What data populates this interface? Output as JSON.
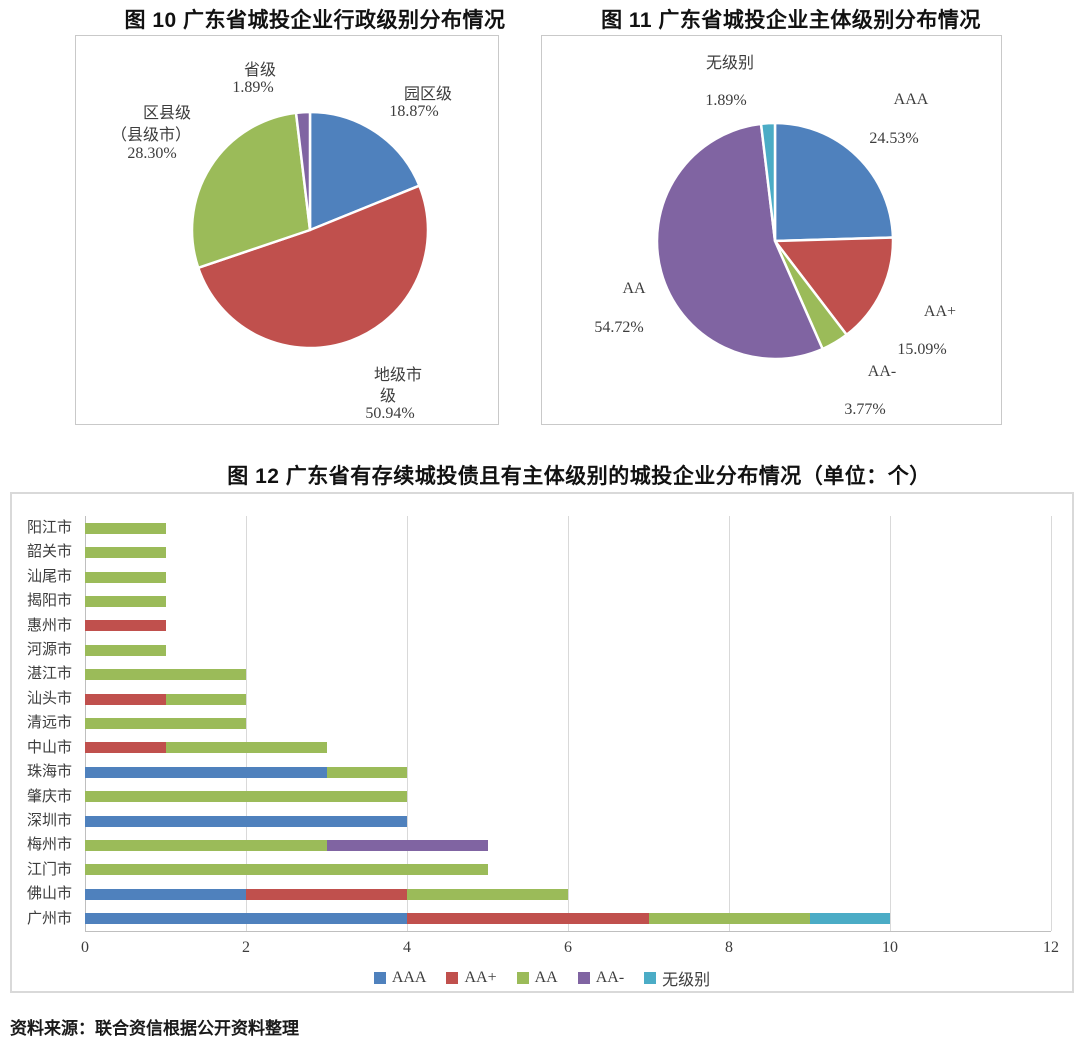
{
  "source_note": "资料来源：联合资信根据公开资料整理",
  "palette": {
    "blue": "#4F81BD",
    "red": "#C0504D",
    "green": "#9BBB59",
    "purple": "#8064A2",
    "teal": "#4BACC6"
  },
  "chart_data": [
    {
      "id": "fig10",
      "type": "pie",
      "title": "图 10  广东省城投企业行政级别分布情况",
      "start_angle_deg": 0,
      "direction": "clockwise",
      "slices": [
        {
          "name": "园区级",
          "name_lines": [
            "园区级"
          ],
          "pct": 18.87,
          "pct_label": "18.87%",
          "color": "#4F81BD"
        },
        {
          "name": "地级市级",
          "name_lines": [
            "地级市",
            "级"
          ],
          "pct": 50.94,
          "pct_label": "50.94%",
          "color": "#C0504D"
        },
        {
          "name": "区县级（县级市）",
          "name_lines": [
            "区县级",
            "（县级市）"
          ],
          "pct": 28.3,
          "pct_label": "28.30%",
          "color": "#9BBB59"
        },
        {
          "name": "省级",
          "name_lines": [
            "省级"
          ],
          "pct": 1.89,
          "pct_label": "1.89%",
          "color": "#8064A2"
        }
      ]
    },
    {
      "id": "fig11",
      "type": "pie",
      "title": "图 11  广东省城投企业主体级别分布情况",
      "start_angle_deg": 0,
      "direction": "clockwise",
      "slices": [
        {
          "name": "AAA",
          "pct": 24.53,
          "pct_label": "24.53%",
          "color": "#4F81BD"
        },
        {
          "name": "AA+",
          "pct": 15.09,
          "pct_label": "15.09%",
          "color": "#C0504D"
        },
        {
          "name": "AA-",
          "pct": 3.77,
          "pct_label": "3.77%",
          "color": "#9BBB59"
        },
        {
          "name": "AA",
          "pct": 54.72,
          "pct_label": "54.72%",
          "color": "#8064A2"
        },
        {
          "name": "无级别",
          "pct": 1.89,
          "pct_label": "1.89%",
          "color": "#4BACC6"
        }
      ]
    },
    {
      "id": "fig12",
      "type": "bar",
      "title": "图 12  广东省有存续城投债且有主体级别的城投企业分布情况（单位：个）",
      "orientation": "horizontal",
      "stacked": true,
      "grid": true,
      "legend_position": "bottom",
      "xlim": [
        0,
        12
      ],
      "x_ticks": [
        0,
        2,
        4,
        6,
        8,
        10,
        12
      ],
      "categories": [
        "阳江市",
        "韶关市",
        "汕尾市",
        "揭阳市",
        "惠州市",
        "河源市",
        "湛江市",
        "汕头市",
        "清远市",
        "中山市",
        "珠海市",
        "肇庆市",
        "深圳市",
        "梅州市",
        "江门市",
        "佛山市",
        "广州市"
      ],
      "series": [
        {
          "name": "AAA",
          "color": "#4F81BD",
          "values": [
            0,
            0,
            0,
            0,
            0,
            0,
            0,
            0,
            0,
            0,
            3,
            0,
            4,
            0,
            0,
            2,
            4
          ]
        },
        {
          "name": "AA+",
          "color": "#C0504D",
          "values": [
            0,
            0,
            0,
            0,
            1,
            0,
            0,
            1,
            0,
            1,
            0,
            0,
            0,
            0,
            0,
            2,
            3
          ]
        },
        {
          "name": "AA",
          "color": "#9BBB59",
          "values": [
            1,
            1,
            1,
            1,
            0,
            1,
            2,
            1,
            2,
            2,
            1,
            4,
            0,
            3,
            5,
            2,
            2
          ]
        },
        {
          "name": "AA-",
          "color": "#8064A2",
          "values": [
            0,
            0,
            0,
            0,
            0,
            0,
            0,
            0,
            0,
            0,
            0,
            0,
            0,
            2,
            0,
            0,
            0
          ]
        },
        {
          "name": "无级别",
          "color": "#4BACC6",
          "values": [
            0,
            0,
            0,
            0,
            0,
            0,
            0,
            0,
            0,
            0,
            0,
            0,
            0,
            0,
            0,
            0,
            1
          ]
        }
      ]
    }
  ]
}
